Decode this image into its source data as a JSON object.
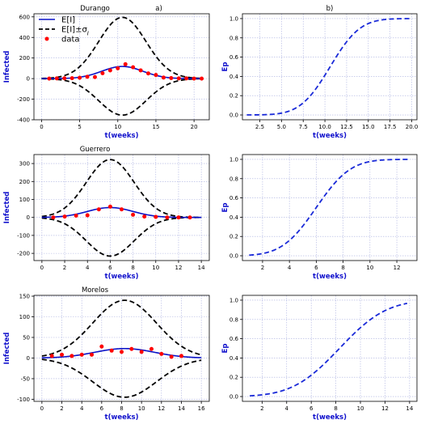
{
  "chart_data": [
    {
      "type": "line",
      "title": "Durango",
      "panel_label": "a)",
      "xlabel": "t(weeks)",
      "ylabel": "Infected",
      "xlim": [
        -1,
        22
      ],
      "ylim": [
        -400,
        630
      ],
      "xticks": [
        "0",
        "5",
        "10",
        "15",
        "20"
      ],
      "xtick_values": [
        0,
        5,
        10,
        15,
        20
      ],
      "yticks": [
        "-400",
        "-200",
        "0",
        "200",
        "400",
        "600"
      ],
      "ytick_values": [
        -400,
        -200,
        0,
        200,
        400,
        600
      ],
      "legend": {
        "position": "top-left",
        "entries": [
          "E[I]",
          "E[I]±σ_I",
          "data"
        ]
      },
      "grid": true,
      "mean": {
        "mu": 10.6,
        "sigma": 2.7,
        "amp": 118,
        "x_start": 0,
        "x_end": 21
      },
      "upper": {
        "mu": 10.6,
        "sigma": 3.1,
        "amp": 595,
        "x_start": 0,
        "x_end": 21
      },
      "lower": {
        "mu": 10.6,
        "sigma": 3.1,
        "amp": -355,
        "x_start": 0,
        "x_end": 21
      },
      "data": {
        "x": [
          1,
          2,
          3,
          4,
          5,
          6,
          7,
          8,
          9,
          10,
          11,
          12,
          13,
          14,
          15,
          16,
          17,
          18,
          19,
          20,
          21
        ],
        "y": [
          0,
          2,
          3,
          4,
          8,
          18,
          15,
          52,
          80,
          100,
          140,
          110,
          80,
          50,
          35,
          10,
          5,
          2,
          2,
          0,
          0
        ]
      }
    },
    {
      "type": "line",
      "title": "",
      "panel_label": "b)",
      "xlabel": "t(weeks)",
      "ylabel": "Ep",
      "xlim": [
        0.5,
        20.6
      ],
      "ylim": [
        -0.05,
        1.05
      ],
      "xticks": [
        "2.5",
        "5.0",
        "7.5",
        "10.0",
        "12.5",
        "15.0",
        "17.5",
        "20.0"
      ],
      "xtick_values": [
        2.5,
        5.0,
        7.5,
        10.0,
        12.5,
        15.0,
        17.5,
        20.0
      ],
      "yticks": [
        "0.0",
        "0.2",
        "0.4",
        "0.6",
        "0.8",
        "1.0"
      ],
      "ytick_values": [
        0.0,
        0.2,
        0.4,
        0.6,
        0.8,
        1.0
      ],
      "grid": true,
      "cdf": {
        "mu": 10.6,
        "sigma": 2.7,
        "x_start": 1,
        "x_end": 20
      }
    },
    {
      "type": "line",
      "title": "Guerrero",
      "xlabel": "t(weeks)",
      "ylabel": "Infected",
      "xlim": [
        -0.7,
        14.7
      ],
      "ylim": [
        -240,
        350
      ],
      "xticks": [
        "0",
        "2",
        "4",
        "6",
        "8",
        "10",
        "12",
        "14"
      ],
      "xtick_values": [
        0,
        2,
        4,
        6,
        8,
        10,
        12,
        14
      ],
      "yticks": [
        "-200",
        "-100",
        "0",
        "100",
        "200",
        "300"
      ],
      "ytick_values": [
        -200,
        -100,
        0,
        100,
        200,
        300
      ],
      "grid": true,
      "mean": {
        "mu": 6.0,
        "sigma": 2.0,
        "amp": 55,
        "x_start": 0,
        "x_end": 14
      },
      "upper": {
        "mu": 6.0,
        "sigma": 2.1,
        "amp": 322,
        "x_start": 0,
        "x_end": 14
      },
      "lower": {
        "mu": 6.0,
        "sigma": 2.1,
        "amp": -215,
        "x_start": 0,
        "x_end": 14
      },
      "data": {
        "x": [
          1,
          2,
          3,
          4,
          5,
          6,
          7,
          8,
          9,
          10,
          11,
          12,
          13
        ],
        "y": [
          0,
          5,
          10,
          12,
          45,
          60,
          45,
          15,
          5,
          3,
          0,
          0,
          0
        ]
      }
    },
    {
      "type": "line",
      "title": "",
      "xlabel": "t(weeks)",
      "ylabel": "Ep",
      "xlim": [
        0.5,
        13.5
      ],
      "ylim": [
        -0.05,
        1.05
      ],
      "xticks": [
        "2",
        "4",
        "6",
        "8",
        "10",
        "12"
      ],
      "xtick_values": [
        2,
        4,
        6,
        8,
        10,
        12
      ],
      "yticks": [
        "0.0",
        "0.2",
        "0.4",
        "0.6",
        "0.8",
        "1.0"
      ],
      "ytick_values": [
        0.0,
        0.2,
        0.4,
        0.6,
        0.8,
        1.0
      ],
      "grid": true,
      "cdf": {
        "mu": 6.0,
        "sigma": 2.0,
        "x_start": 1,
        "x_end": 13
      }
    },
    {
      "type": "line",
      "title": "Morelos",
      "xlabel": "t(weeks)",
      "ylabel": "Infected",
      "xlim": [
        -0.8,
        16.8
      ],
      "ylim": [
        -105,
        152
      ],
      "xticks": [
        "0",
        "2",
        "4",
        "6",
        "8",
        "10",
        "12",
        "14",
        "16"
      ],
      "xtick_values": [
        0,
        2,
        4,
        6,
        8,
        10,
        12,
        14,
        16
      ],
      "yticks": [
        "-100",
        "-50",
        "0",
        "50",
        "100",
        "150"
      ],
      "ytick_values": [
        -100,
        -50,
        0,
        50,
        100,
        150
      ],
      "grid": true,
      "mean": {
        "mu": 8.3,
        "sigma": 3.0,
        "amp": 23,
        "x_start": 0,
        "x_end": 16
      },
      "upper": {
        "mu": 8.3,
        "sigma": 3.2,
        "amp": 140,
        "x_start": 0,
        "x_end": 16
      },
      "lower": {
        "mu": 8.3,
        "sigma": 3.2,
        "amp": -95,
        "x_start": 0,
        "x_end": 16
      },
      "data": {
        "x": [
          1,
          2,
          3,
          4,
          5,
          6,
          7,
          8,
          9,
          10,
          11,
          12,
          13,
          14
        ],
        "y": [
          5,
          8,
          5,
          8,
          8,
          28,
          18,
          15,
          22,
          15,
          22,
          10,
          3,
          5
        ]
      }
    },
    {
      "type": "line",
      "title": "",
      "xlabel": "t(weeks)",
      "ylabel": "Ep",
      "xlim": [
        0.4,
        14.6
      ],
      "ylim": [
        -0.05,
        1.05
      ],
      "xticks": [
        "2",
        "4",
        "6",
        "8",
        "10",
        "12",
        "14"
      ],
      "xtick_values": [
        2,
        4,
        6,
        8,
        10,
        12,
        14
      ],
      "yticks": [
        "0.0",
        "0.2",
        "0.4",
        "0.6",
        "0.8",
        "1.0"
      ],
      "ytick_values": [
        0.0,
        0.2,
        0.4,
        0.6,
        0.8,
        1.0
      ],
      "grid": true,
      "cdf": {
        "mu": 8.3,
        "sigma": 3.0,
        "x_start": 1,
        "x_end": 13.8
      }
    }
  ],
  "colors": {
    "mean_line": "#0a12c8",
    "band_line": "#000000",
    "data_points": "#ff0000",
    "cdf_line": "#1a2ad8",
    "axis_label": "#1010cc",
    "grid": "#aab0e0"
  }
}
